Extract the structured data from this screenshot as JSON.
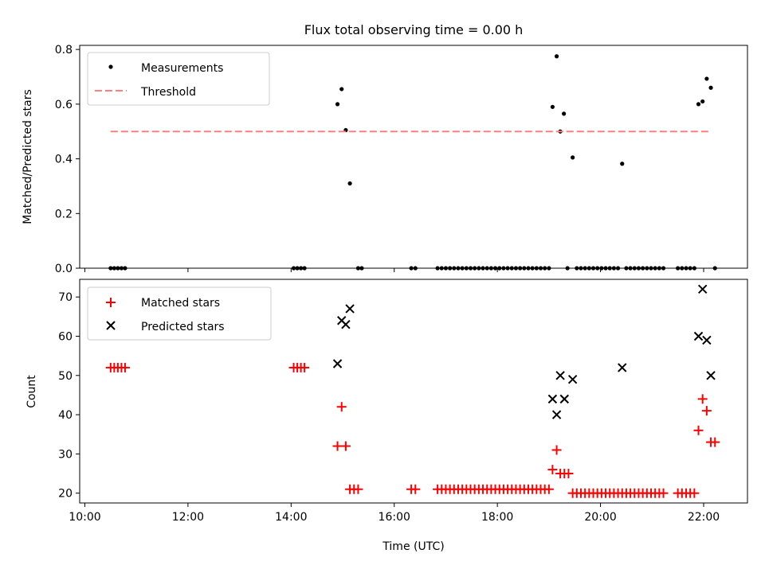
{
  "figure_title": "Flux total observing time = 0.00 h",
  "chart_data": [
    {
      "type": "scatter",
      "title": "Flux total observing time = 0.00 h",
      "ylabel": "Matched/Predicted stars",
      "xlabel": "",
      "xlim": [
        9.9,
        22.85
      ],
      "ylim": [
        0,
        0.815
      ],
      "xticks": [
        10,
        12,
        14,
        16,
        18,
        20,
        22
      ],
      "yticks": [
        0.0,
        0.2,
        0.4,
        0.6,
        0.8
      ],
      "ytick_labels": [
        "0.0",
        "0.2",
        "0.4",
        "0.6",
        "0.8"
      ],
      "legend_position": "upper-left",
      "grid": false,
      "series": [
        {
          "name": "Measurements",
          "kind": "points",
          "color": "#000000",
          "x": [
            10.5,
            10.57,
            10.64,
            10.71,
            10.78,
            14.05,
            14.12,
            14.19,
            14.26,
            14.9,
            14.98,
            15.06,
            15.14,
            15.3,
            15.37,
            16.33,
            16.41,
            16.84,
            16.92,
            17.0,
            17.08,
            17.16,
            17.24,
            17.32,
            17.4,
            17.48,
            17.56,
            17.64,
            17.72,
            17.8,
            17.88,
            17.96,
            18.04,
            18.12,
            18.2,
            18.28,
            18.36,
            18.44,
            18.52,
            18.6,
            18.68,
            18.76,
            18.84,
            18.92,
            19.0,
            19.07,
            19.15,
            19.22,
            19.29,
            19.36,
            19.46,
            19.54,
            19.62,
            19.7,
            19.78,
            19.86,
            19.94,
            20.02,
            20.1,
            20.18,
            20.26,
            20.34,
            20.42,
            20.5,
            20.58,
            20.66,
            20.74,
            20.82,
            20.9,
            20.98,
            21.06,
            21.14,
            21.22,
            21.5,
            21.58,
            21.66,
            21.74,
            21.82,
            21.9,
            21.98,
            22.06,
            22.14,
            22.22
          ],
          "y": [
            0,
            0,
            0,
            0,
            0,
            0,
            0,
            0,
            0,
            0.6,
            0.655,
            0.505,
            0.31,
            0,
            0,
            0,
            0,
            0,
            0,
            0,
            0,
            0,
            0,
            0,
            0,
            0,
            0,
            0,
            0,
            0,
            0,
            0,
            0,
            0,
            0,
            0,
            0,
            0,
            0,
            0,
            0,
            0,
            0,
            0,
            0,
            0.59,
            0.775,
            0.5,
            0.565,
            0,
            0.405,
            0,
            0,
            0,
            0,
            0,
            0,
            0,
            0,
            0,
            0,
            0,
            0.382,
            0,
            0,
            0,
            0,
            0,
            0,
            0,
            0,
            0,
            0,
            0,
            0,
            0,
            0,
            0,
            0.6,
            0.61,
            0.693,
            0.66,
            0
          ]
        },
        {
          "name": "Threshold",
          "kind": "dashed-line",
          "color": "#ff7f7f",
          "x": [
            10.5,
            22.1
          ],
          "y": [
            0.5,
            0.5
          ]
        }
      ]
    },
    {
      "type": "scatter",
      "title": "",
      "ylabel": "Count",
      "xlabel": "Time (UTC)",
      "xlim": [
        9.9,
        22.85
      ],
      "ylim": [
        17.5,
        74.5
      ],
      "xticks": [
        10,
        12,
        14,
        16,
        18,
        20,
        22
      ],
      "xtick_labels": [
        "10:00",
        "12:00",
        "14:00",
        "16:00",
        "18:00",
        "20:00",
        "22:00"
      ],
      "yticks": [
        20,
        30,
        40,
        50,
        60,
        70
      ],
      "ytick_labels": [
        "20",
        "30",
        "40",
        "50",
        "60",
        "70"
      ],
      "legend_position": "upper-left",
      "grid": false,
      "series": [
        {
          "name": "Matched stars",
          "kind": "plus",
          "color": "#ff0000",
          "x": [
            10.5,
            10.57,
            10.64,
            10.71,
            10.78,
            14.05,
            14.12,
            14.19,
            14.26,
            14.9,
            14.98,
            15.06,
            15.14,
            15.22,
            15.3,
            16.33,
            16.41,
            16.84,
            16.92,
            17.0,
            17.08,
            17.16,
            17.24,
            17.32,
            17.4,
            17.48,
            17.56,
            17.64,
            17.72,
            17.8,
            17.88,
            17.96,
            18.04,
            18.12,
            18.2,
            18.28,
            18.36,
            18.44,
            18.52,
            18.6,
            18.68,
            18.76,
            18.84,
            18.92,
            19.0,
            19.07,
            19.15,
            19.22,
            19.3,
            19.38,
            19.46,
            19.54,
            19.62,
            19.7,
            19.78,
            19.86,
            19.94,
            20.02,
            20.1,
            20.18,
            20.26,
            20.34,
            20.42,
            20.5,
            20.58,
            20.66,
            20.74,
            20.82,
            20.9,
            20.98,
            21.06,
            21.14,
            21.22,
            21.5,
            21.58,
            21.66,
            21.74,
            21.82,
            21.9,
            21.98,
            22.06,
            22.14,
            22.22
          ],
          "y": [
            52,
            52,
            52,
            52,
            52,
            52,
            52,
            52,
            52,
            32,
            42,
            32,
            21,
            21,
            21,
            21,
            21,
            21,
            21,
            21,
            21,
            21,
            21,
            21,
            21,
            21,
            21,
            21,
            21,
            21,
            21,
            21,
            21,
            21,
            21,
            21,
            21,
            21,
            21,
            21,
            21,
            21,
            21,
            21,
            21,
            26,
            31,
            25,
            25,
            25,
            20,
            20,
            20,
            20,
            20,
            20,
            20,
            20,
            20,
            20,
            20,
            20,
            20,
            20,
            20,
            20,
            20,
            20,
            20,
            20,
            20,
            20,
            20,
            20,
            20,
            20,
            20,
            20,
            36,
            44,
            41,
            33,
            33
          ]
        },
        {
          "name": "Predicted stars",
          "kind": "x",
          "color": "#000000",
          "x": [
            14.9,
            14.98,
            15.06,
            15.14,
            19.07,
            19.15,
            19.22,
            19.3,
            19.46,
            20.42,
            21.9,
            21.98,
            22.06,
            22.14
          ],
          "y": [
            53,
            64,
            63,
            67,
            44,
            40,
            50,
            44,
            49,
            52,
            60,
            72,
            59,
            50
          ]
        }
      ]
    }
  ]
}
